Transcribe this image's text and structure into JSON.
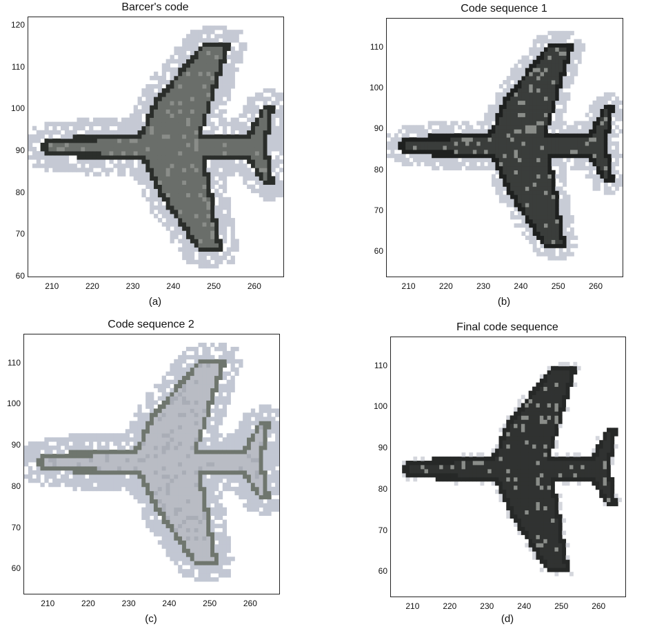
{
  "chart_data": [
    {
      "type": "heatmap",
      "title": "Barcer's code",
      "caption": "(a)",
      "variant": "a",
      "x_ticks": [
        210,
        220,
        230,
        240,
        250,
        260
      ],
      "y_ticks": [
        60,
        70,
        80,
        90,
        100,
        110,
        120
      ],
      "xlim": [
        204,
        267
      ],
      "ylim": [
        60,
        122
      ],
      "colors": {
        "halo": "#c5c9d4",
        "fill": "#6a6e6a",
        "edge": "#2b2e2b"
      }
    },
    {
      "type": "heatmap",
      "title": "Code sequence 1",
      "caption": "(b)",
      "variant": "b",
      "x_ticks": [
        210,
        220,
        230,
        240,
        250,
        260
      ],
      "y_ticks": [
        60,
        70,
        80,
        90,
        100,
        110
      ],
      "xlim": [
        204,
        267
      ],
      "ylim": [
        54,
        117
      ],
      "colors": {
        "halo": "#c8ccd6",
        "fill": "#3a3d3b",
        "edge": "#1e201f"
      }
    },
    {
      "type": "heatmap",
      "title": "Code sequence 2",
      "caption": "(c)",
      "variant": "c",
      "x_ticks": [
        210,
        220,
        230,
        240,
        250,
        260
      ],
      "y_ticks": [
        60,
        70,
        80,
        90,
        100,
        110
      ],
      "xlim": [
        204,
        267
      ],
      "ylim": [
        54,
        117
      ],
      "colors": {
        "halo": "#c2c7d3",
        "fill": "#b9bcc4",
        "edge": "#6f766e"
      }
    },
    {
      "type": "heatmap",
      "title": "Final code sequence",
      "caption": "(d)",
      "variant": "d",
      "x_ticks": [
        210,
        220,
        230,
        240,
        250,
        260
      ],
      "y_ticks": [
        60,
        70,
        80,
        90,
        100,
        110
      ],
      "xlim": [
        204,
        267
      ],
      "ylim": [
        54,
        117
      ],
      "colors": {
        "halo": "#d4d6dc",
        "fill": "#303231",
        "edge": "#262827"
      }
    }
  ]
}
